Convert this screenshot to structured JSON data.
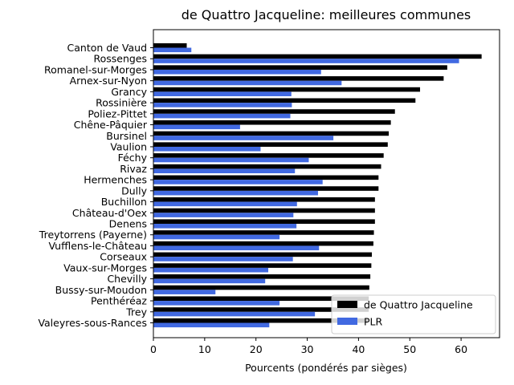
{
  "chart_data": {
    "type": "bar",
    "orientation": "horizontal",
    "title": "de Quattro Jacqueline: meilleures communes",
    "xlabel": "Pourcents (pondérés par sièges)",
    "ylabel": "",
    "xlim": [
      0,
      67.5
    ],
    "x_ticks": [
      0,
      10,
      20,
      30,
      40,
      50,
      60
    ],
    "grid": false,
    "legend_position": "lower right",
    "categories": [
      "Canton de Vaud",
      "Rossenges",
      "Romanel-sur-Morges",
      "Arnex-sur-Nyon",
      "Grancy",
      "Rossinière",
      "Poliez-Pittet",
      "Chêne-Pâquier",
      "Bursinel",
      "Vaulion",
      "Féchy",
      "Rivaz",
      "Hermenches",
      "Dully",
      "Buchillon",
      "Château-d'Oex",
      "Denens",
      "Treytorrens (Payerne)",
      "Vufflens-le-Château",
      "Corseaux",
      "Vaux-sur-Morges",
      "Chevilly",
      "Bussy-sur-Moudon",
      "Penthéréaz",
      "Trey",
      "Valeyres-sous-Rances"
    ],
    "series": [
      {
        "name": "de Quattro Jacqueline",
        "color": "#000000",
        "values": [
          6.5,
          64.0,
          57.3,
          56.6,
          52.0,
          51.1,
          47.1,
          46.3,
          45.9,
          45.7,
          44.9,
          44.4,
          43.9,
          43.9,
          43.2,
          43.2,
          43.2,
          43.0,
          42.9,
          42.6,
          42.5,
          42.3,
          42.1,
          42.0,
          42.0,
          41.8
        ]
      },
      {
        "name": "PLR",
        "color": "#4169e1",
        "values": [
          7.4,
          59.6,
          32.7,
          36.7,
          26.9,
          27.0,
          26.7,
          16.9,
          35.1,
          20.9,
          30.3,
          27.6,
          33.0,
          32.1,
          28.0,
          27.3,
          27.9,
          24.6,
          32.3,
          27.2,
          22.4,
          21.8,
          12.1,
          24.6,
          31.5,
          22.6
        ]
      }
    ]
  }
}
